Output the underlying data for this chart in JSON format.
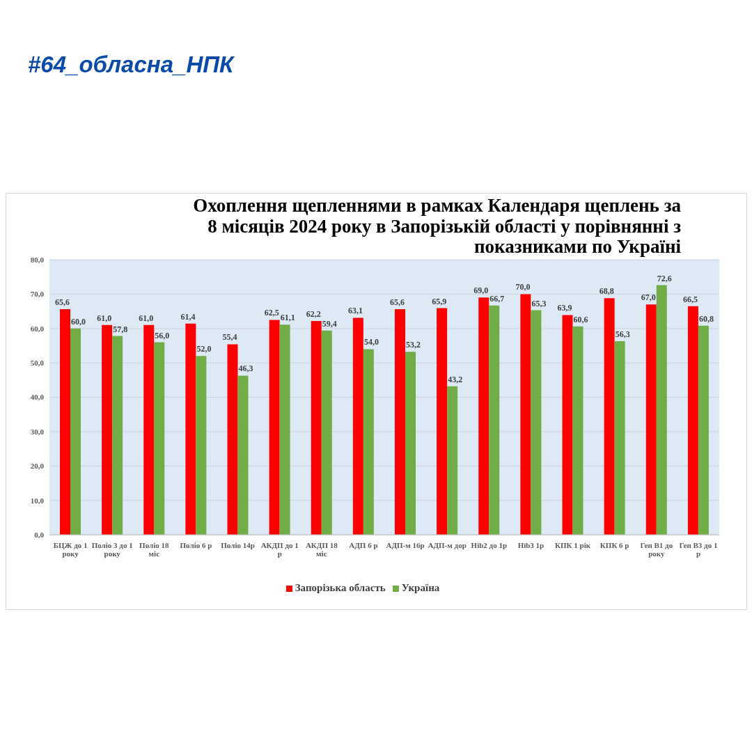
{
  "chart_data": {
    "type": "bar",
    "title": "Охоплення щепленнями в рамках Календаря щеплень за 8 місяців 2024 року в Запорізькій області у порівнянні з показниками по Україні",
    "annotations": [
      "#64_обласна_НПК"
    ],
    "categories": [
      "БЦЖ до 1 року",
      "Поліо 3 до 1 року",
      "Поліо 18 міс",
      "Поліо 6 р",
      "Поліо 14р",
      "АКДП до 1 р",
      "АКДП 18 міс",
      "АДП 6 р",
      "АДП-м 16р",
      "АДП-м дор",
      "Hib2  до 1р",
      "Hib3 1р",
      "КПК 1 рік",
      "КПК 6 р",
      "Геп В1 до року",
      "Геп В3 до 1 р"
    ],
    "series": [
      {
        "name": "Запорізька область",
        "color": "#ff0000",
        "values": [
          65.6,
          61.0,
          61.0,
          61.4,
          55.4,
          62.5,
          62.2,
          63.1,
          65.6,
          65.9,
          69.0,
          70.0,
          63.9,
          68.8,
          67.0,
          66.5
        ],
        "value_labels": [
          "65,6",
          "61,0",
          "61,0",
          "61,4",
          "55,4",
          "62,5",
          "62,2",
          "63,1",
          "65,6",
          "65,9",
          "69,0",
          "70,0",
          "63,9",
          "68,8",
          "67,0",
          "66,5"
        ]
      },
      {
        "name": "Україна",
        "color": "#70ad47",
        "values": [
          60.0,
          57.8,
          56.0,
          52.0,
          46.3,
          61.1,
          59.4,
          54.0,
          53.2,
          43.2,
          66.7,
          65.3,
          60.6,
          56.3,
          72.6,
          60.8
        ],
        "value_labels": [
          "60,0",
          "57,8",
          "56,0",
          "52,0",
          "46,3",
          "61,1",
          "59,4",
          "54,0",
          "53,2",
          "43,2",
          "66,7",
          "65,3",
          "60,6",
          "56,3",
          "72,6",
          "60,8"
        ]
      }
    ],
    "ylim": [
      0,
      80
    ],
    "yticks": [
      {
        "value": 0,
        "label": "0,0"
      },
      {
        "value": 10,
        "label": "10,0"
      },
      {
        "value": 20,
        "label": "20,0"
      },
      {
        "value": 30,
        "label": "30,0"
      },
      {
        "value": 40,
        "label": "40,0"
      },
      {
        "value": 50,
        "label": "50,0"
      },
      {
        "value": 60,
        "label": "60,0"
      },
      {
        "value": 70,
        "label": "70,0"
      },
      {
        "value": 80,
        "label": "80,0"
      }
    ],
    "grid": "y",
    "legend": "bottom"
  }
}
